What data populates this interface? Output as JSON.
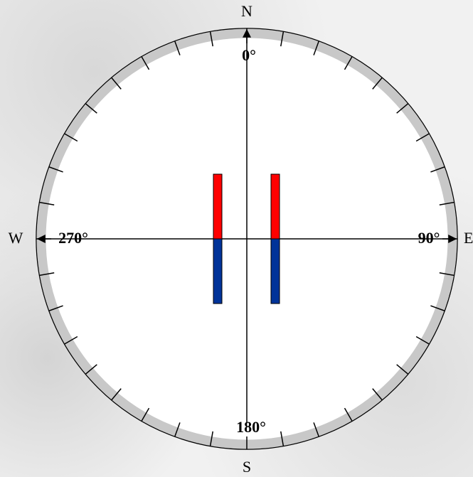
{
  "directions": {
    "north": "N",
    "east": "E",
    "south": "S",
    "west": "W"
  },
  "degrees": {
    "north": "0°",
    "east": "90°",
    "south": "180°",
    "west": "270°"
  }
}
